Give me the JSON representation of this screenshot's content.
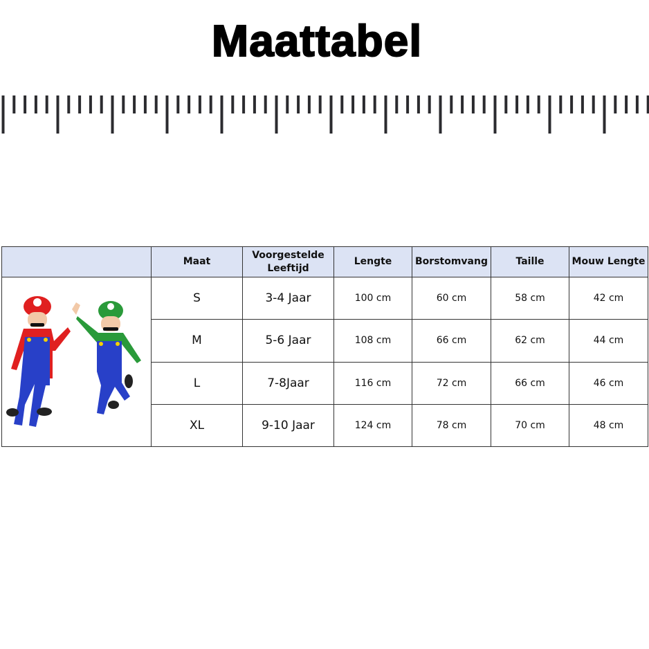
{
  "title": "Maattabel",
  "table": {
    "headers": [
      "",
      "Maat",
      "Voorgestelde Leeftijd",
      "Lengte",
      "Borstomvang",
      "Taille",
      "Mouw Lengte"
    ],
    "rows": [
      [
        "S",
        "3-4 Jaar",
        "100 cm",
        "60 cm",
        "58 cm",
        "42 cm"
      ],
      [
        "M",
        "5-6 Jaar",
        "108 cm",
        "66 cm",
        "62 cm",
        "44 cm"
      ],
      [
        "L",
        "7-8Jaar",
        "116 cm",
        "72 cm",
        "66 cm",
        "46 cm"
      ],
      [
        "XL",
        "9-10 Jaar",
        "124 cm",
        "78 cm",
        "70 cm",
        "48 cm"
      ]
    ],
    "header_color": "#dce3f4"
  },
  "image": {
    "description_icon": "mario-luigi-costume-photo"
  }
}
